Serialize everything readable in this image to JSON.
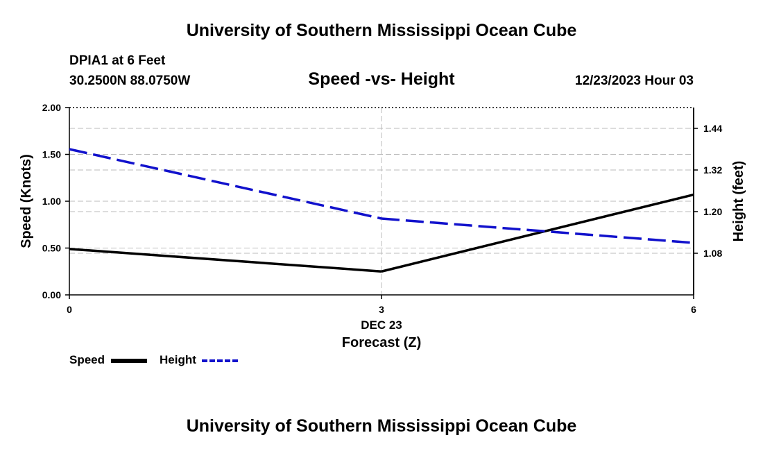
{
  "header": {
    "title": "University of Southern Mississippi Ocean Cube",
    "station": "DPIA1 at 6 Feet",
    "coordinates": "30.2500N  88.0750W",
    "datetime": "12/23/2023 Hour 03"
  },
  "footer": {
    "title": "University of Southern Mississippi Ocean Cube"
  },
  "legend": {
    "speed_label": "Speed",
    "height_label": "Height"
  },
  "colors": {
    "speed": "#000000",
    "height": "#1111cc",
    "grid": "#bbbbbb"
  },
  "chart_data": {
    "type": "line",
    "title": "Speed -vs- Height",
    "x": [
      0,
      3,
      6
    ],
    "x_tick_labels": [
      "0",
      "3",
      "6"
    ],
    "x_sublabel": "DEC 23",
    "xlabel": "Forecast (Z)",
    "xlim": [
      0,
      6
    ],
    "ylabel_left": "Speed (Knots)",
    "ylim_left": [
      0,
      2
    ],
    "yticks_left": [
      "0.00",
      "0.50",
      "1.00",
      "1.50",
      "2.00"
    ],
    "ylabel_right": "Height (feet)",
    "ylim_right": [
      0.96,
      1.5
    ],
    "yticks_right": [
      "1.08",
      "1.20",
      "1.32",
      "1.44"
    ],
    "grid": true,
    "legend_position": "bottom-left",
    "series": [
      {
        "name": "Speed",
        "axis": "left",
        "style": "solid",
        "values": [
          0.49,
          0.25,
          1.07
        ]
      },
      {
        "name": "Height",
        "axis": "right",
        "style": "dashed",
        "values": [
          1.38,
          1.18,
          1.11
        ]
      }
    ]
  }
}
